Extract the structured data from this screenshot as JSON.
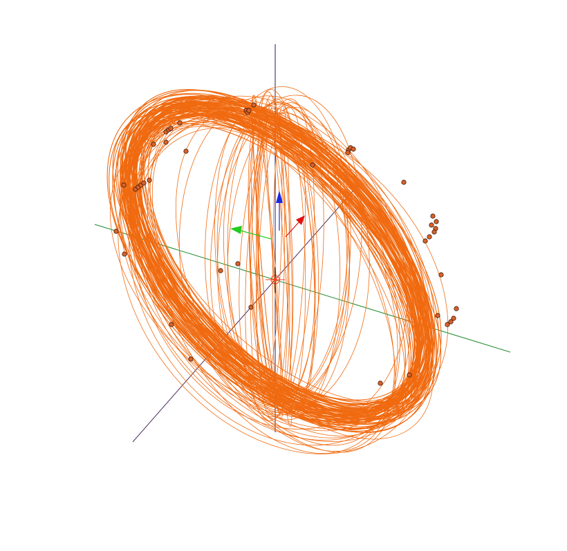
{
  "scene": {
    "background": "#ffffff",
    "orbit_color": "#f06a10",
    "satellite_fill": "#d9622a",
    "satellite_stroke": "#3a1a0a",
    "center_color": "#ff3b1a",
    "axes": {
      "x": {
        "color": "#4a2a5a",
        "arrow_color": "#e01010"
      },
      "y": {
        "color": "#1a8a2a",
        "arrow_color": "#22cc22"
      },
      "z": {
        "color": "#1a1a60",
        "arrow_color": "#1a2ae0"
      }
    },
    "icons": [
      "center-crosshair-icon",
      "x-axis-arrow-icon",
      "y-axis-arrow-icon",
      "z-axis-arrow-icon"
    ]
  }
}
